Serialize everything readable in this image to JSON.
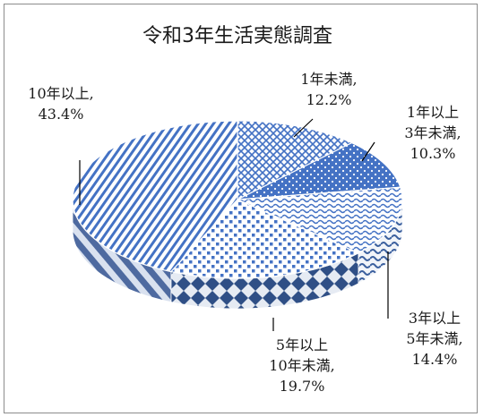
{
  "chart_data": {
    "type": "pie",
    "title": "令和3年生活実態調査",
    "categories": [
      "1年未満",
      "1年以上 3年未満",
      "3年以上 5年未満",
      "5年以上 10年未満",
      "10年以上"
    ],
    "values": [
      12.2,
      10.3,
      14.4,
      19.7,
      43.4
    ],
    "unit": "%",
    "legend": "none",
    "style": "3d-pie-patterned",
    "colors": {
      "dark": "#4472c4",
      "light": "#ffffff",
      "side": "#3a5f9e"
    }
  },
  "labels": [
    {
      "lines": [
        "1年未満,",
        "12.2%"
      ]
    },
    {
      "lines": [
        "1年以上",
        "3年未満,",
        "10.3%"
      ]
    },
    {
      "lines": [
        "3年以上",
        "5年未満,",
        "14.4%"
      ]
    },
    {
      "lines": [
        "5年以上",
        "10年未満,",
        "19.7%"
      ]
    },
    {
      "lines": [
        "10年以上,",
        "43.4%"
      ]
    }
  ]
}
